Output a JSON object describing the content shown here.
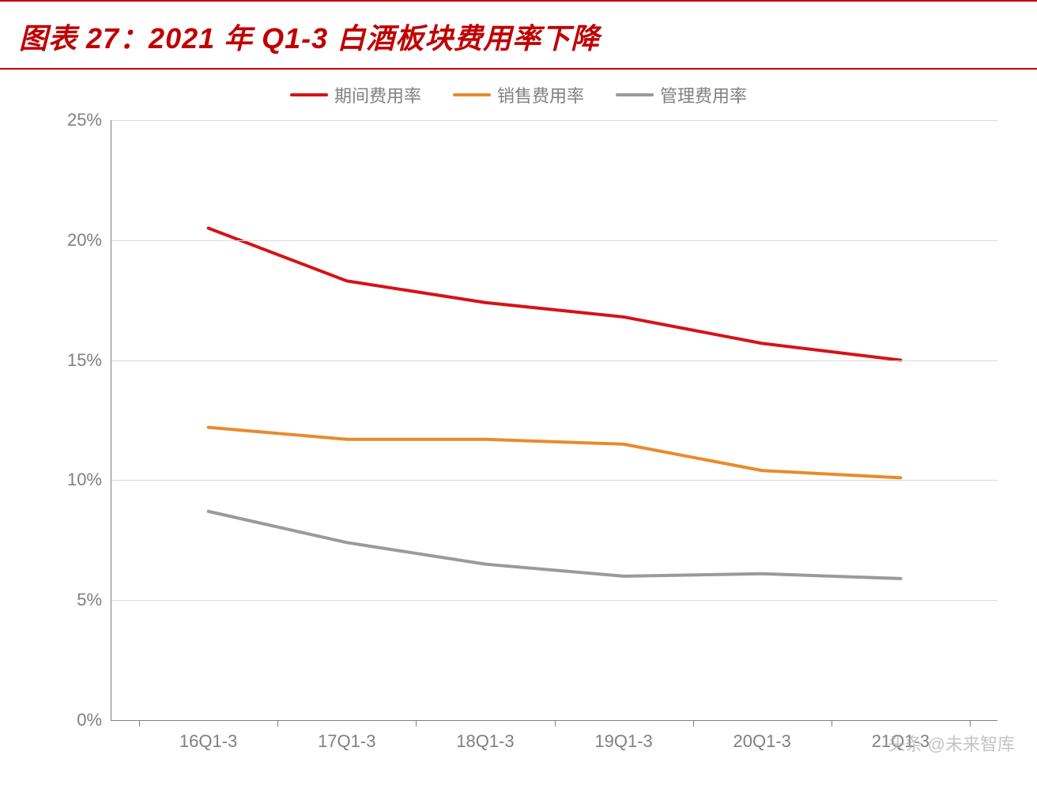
{
  "title": "图表 27：2021 年 Q1-3 白酒板块费用率下降",
  "title_color": "#c00000",
  "title_fontsize": 36,
  "border_color": "#c00000",
  "background_color": "#ffffff",
  "watermark": "头条 @未来智库",
  "chart": {
    "type": "line",
    "xlabels": [
      "16Q1-3",
      "17Q1-3",
      "18Q1-3",
      "19Q1-3",
      "20Q1-3",
      "21Q1-3"
    ],
    "ylim": [
      0,
      25
    ],
    "ytick_step": 5,
    "ytick_format_suffix": "%",
    "axis_color": "#808080",
    "grid_color": "#d9d9d9",
    "tick_label_color": "#808080",
    "tick_label_fontsize": 22,
    "line_width": 4,
    "series": [
      {
        "name": "期间费用率",
        "color": "#d51317",
        "values": [
          20.5,
          18.3,
          17.4,
          16.8,
          15.7,
          15.0
        ]
      },
      {
        "name": "销售费用率",
        "color": "#e88b2d",
        "values": [
          12.2,
          11.7,
          11.7,
          11.5,
          10.4,
          10.1
        ]
      },
      {
        "name": "管理费用率",
        "color": "#9a9a9a",
        "values": [
          8.7,
          7.4,
          6.5,
          6.0,
          6.1,
          5.9
        ]
      }
    ]
  }
}
